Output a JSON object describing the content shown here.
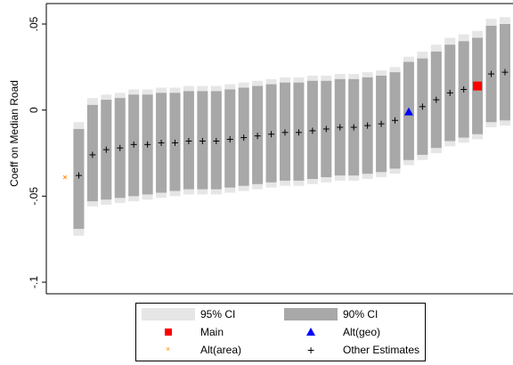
{
  "chart_data": {
    "type": "scatter",
    "title": "",
    "xlabel": "",
    "ylabel": "Coeff on Median Road",
    "ylim": [
      -0.1,
      0.05
    ],
    "yticks": [
      ".05",
      "0",
      "-.05",
      "-.1"
    ],
    "grid": false,
    "legend_position": "bottom",
    "legend": {
      "ci95": "95% CI",
      "ci90": "90% CI",
      "main": "Main",
      "alt_geo": "Alt(geo)",
      "alt_area": "Alt(area)",
      "other": "Other Estimates"
    },
    "colors": {
      "ci95": "#e6e6e6",
      "ci90": "#a8a8a8",
      "main": "#ff0000",
      "alt_geo": "#0000ff",
      "alt_area": "#ff8c00",
      "other": "#000000"
    },
    "estimates": [
      {
        "kind": "alt_area",
        "y": -0.039,
        "ci90": null,
        "ci95": null
      },
      {
        "kind": "other",
        "y": -0.038,
        "ci90": [
          -0.069,
          -0.011
        ],
        "ci95": [
          -0.073,
          -0.007
        ]
      },
      {
        "kind": "other",
        "y": -0.026,
        "ci90": [
          -0.053,
          0.003
        ],
        "ci95": [
          -0.056,
          0.007
        ]
      },
      {
        "kind": "other",
        "y": -0.023,
        "ci90": [
          -0.052,
          0.006
        ],
        "ci95": [
          -0.055,
          0.009
        ]
      },
      {
        "kind": "other",
        "y": -0.022,
        "ci90": [
          -0.051,
          0.007
        ],
        "ci95": [
          -0.054,
          0.01
        ]
      },
      {
        "kind": "other",
        "y": -0.02,
        "ci90": [
          -0.05,
          0.009
        ],
        "ci95": [
          -0.053,
          0.012
        ]
      },
      {
        "kind": "other",
        "y": -0.02,
        "ci90": [
          -0.049,
          0.009
        ],
        "ci95": [
          -0.052,
          0.012
        ]
      },
      {
        "kind": "other",
        "y": -0.019,
        "ci90": [
          -0.048,
          0.01
        ],
        "ci95": [
          -0.051,
          0.013
        ]
      },
      {
        "kind": "other",
        "y": -0.019,
        "ci90": [
          -0.047,
          0.01
        ],
        "ci95": [
          -0.05,
          0.013
        ]
      },
      {
        "kind": "other",
        "y": -0.018,
        "ci90": [
          -0.046,
          0.011
        ],
        "ci95": [
          -0.049,
          0.014
        ]
      },
      {
        "kind": "other",
        "y": -0.018,
        "ci90": [
          -0.046,
          0.011
        ],
        "ci95": [
          -0.049,
          0.014
        ]
      },
      {
        "kind": "other",
        "y": -0.018,
        "ci90": [
          -0.046,
          0.011
        ],
        "ci95": [
          -0.049,
          0.014
        ]
      },
      {
        "kind": "other",
        "y": -0.017,
        "ci90": [
          -0.045,
          0.012
        ],
        "ci95": [
          -0.048,
          0.015
        ]
      },
      {
        "kind": "other",
        "y": -0.016,
        "ci90": [
          -0.044,
          0.013
        ],
        "ci95": [
          -0.047,
          0.016
        ]
      },
      {
        "kind": "other",
        "y": -0.015,
        "ci90": [
          -0.043,
          0.014
        ],
        "ci95": [
          -0.046,
          0.017
        ]
      },
      {
        "kind": "other",
        "y": -0.014,
        "ci90": [
          -0.042,
          0.015
        ],
        "ci95": [
          -0.045,
          0.018
        ]
      },
      {
        "kind": "other",
        "y": -0.013,
        "ci90": [
          -0.041,
          0.016
        ],
        "ci95": [
          -0.044,
          0.019
        ]
      },
      {
        "kind": "other",
        "y": -0.013,
        "ci90": [
          -0.041,
          0.016
        ],
        "ci95": [
          -0.044,
          0.019
        ]
      },
      {
        "kind": "other",
        "y": -0.012,
        "ci90": [
          -0.04,
          0.017
        ],
        "ci95": [
          -0.043,
          0.02
        ]
      },
      {
        "kind": "other",
        "y": -0.011,
        "ci90": [
          -0.039,
          0.017
        ],
        "ci95": [
          -0.042,
          0.02
        ]
      },
      {
        "kind": "other",
        "y": -0.01,
        "ci90": [
          -0.038,
          0.018
        ],
        "ci95": [
          -0.041,
          0.021
        ]
      },
      {
        "kind": "other",
        "y": -0.01,
        "ci90": [
          -0.038,
          0.018
        ],
        "ci95": [
          -0.041,
          0.021
        ]
      },
      {
        "kind": "other",
        "y": -0.009,
        "ci90": [
          -0.037,
          0.019
        ],
        "ci95": [
          -0.04,
          0.022
        ]
      },
      {
        "kind": "other",
        "y": -0.008,
        "ci90": [
          -0.036,
          0.02
        ],
        "ci95": [
          -0.039,
          0.023
        ]
      },
      {
        "kind": "other",
        "y": -0.006,
        "ci90": [
          -0.034,
          0.022
        ],
        "ci95": [
          -0.037,
          0.025
        ]
      },
      {
        "kind": "alt_geo",
        "y": -0.001,
        "ci90": [
          -0.029,
          0.028
        ],
        "ci95": [
          -0.032,
          0.031
        ]
      },
      {
        "kind": "other",
        "y": 0.002,
        "ci90": [
          -0.026,
          0.03
        ],
        "ci95": [
          -0.029,
          0.034
        ]
      },
      {
        "kind": "other",
        "y": 0.006,
        "ci90": [
          -0.022,
          0.034
        ],
        "ci95": [
          -0.025,
          0.038
        ]
      },
      {
        "kind": "other",
        "y": 0.01,
        "ci90": [
          -0.018,
          0.038
        ],
        "ci95": [
          -0.021,
          0.042
        ]
      },
      {
        "kind": "other",
        "y": 0.012,
        "ci90": [
          -0.016,
          0.04
        ],
        "ci95": [
          -0.019,
          0.044
        ]
      },
      {
        "kind": "main",
        "y": 0.014,
        "ci90": [
          -0.014,
          0.042
        ],
        "ci95": [
          -0.017,
          0.046
        ]
      },
      {
        "kind": "other",
        "y": 0.021,
        "ci90": [
          -0.007,
          0.049
        ],
        "ci95": [
          -0.01,
          0.053
        ]
      },
      {
        "kind": "other",
        "y": 0.022,
        "ci90": [
          -0.006,
          0.05
        ],
        "ci95": [
          -0.009,
          0.054
        ]
      }
    ]
  }
}
